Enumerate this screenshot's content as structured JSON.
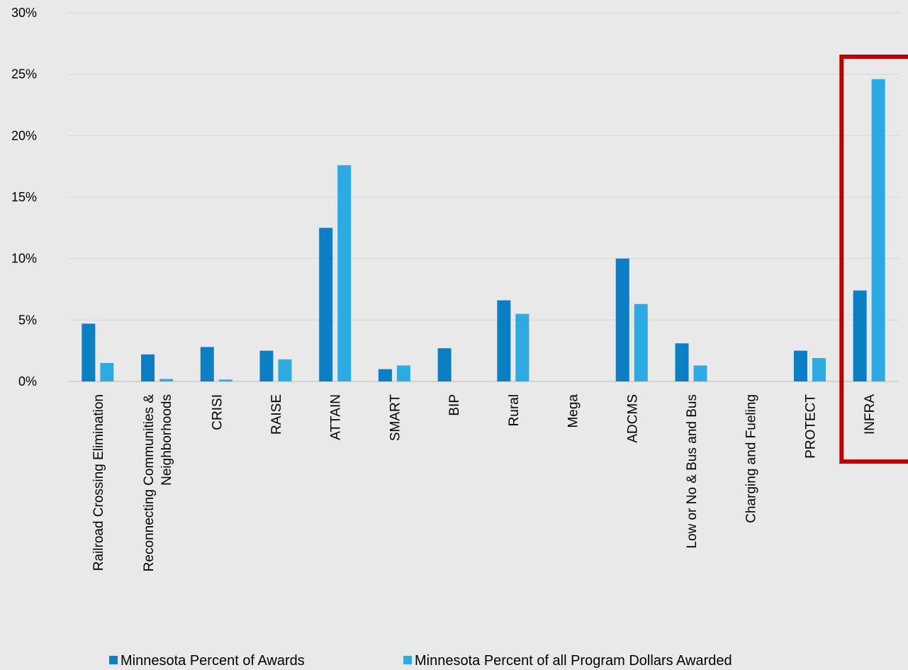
{
  "chart_data": {
    "type": "bar",
    "categories": [
      [
        "Railroad Crossing Elimination"
      ],
      [
        "Reconnecting Communities &",
        "Neighborhoods"
      ],
      [
        "CRISI"
      ],
      [
        "RAISE"
      ],
      [
        "ATTAIN"
      ],
      [
        "SMART"
      ],
      [
        "BIP"
      ],
      [
        "Rural"
      ],
      [
        "Mega"
      ],
      [
        "ADCMS"
      ],
      [
        "Low or No & Bus and Bus"
      ],
      [
        "Charging and Fueling"
      ],
      [
        "PROTECT"
      ],
      [
        "INFRA"
      ]
    ],
    "series": [
      {
        "name": "Minnesota Percent of Awards",
        "color": "#0c7ec4",
        "values": [
          4.7,
          2.2,
          2.8,
          2.5,
          12.5,
          1.0,
          2.7,
          6.6,
          0,
          10.0,
          3.1,
          0,
          2.5,
          7.4
        ]
      },
      {
        "name": "Minnesota Percent of all Program Dollars Awarded",
        "color": "#2dabe2",
        "values": [
          1.5,
          0.2,
          0.15,
          1.8,
          17.6,
          1.3,
          0,
          5.5,
          0,
          6.3,
          1.3,
          0,
          1.9,
          24.6
        ]
      }
    ],
    "ylim": [
      0,
      30
    ],
    "yticks": [
      "0%",
      "5%",
      "10%",
      "15%",
      "20%",
      "25%",
      "30%"
    ],
    "grid": true,
    "legend_position": "bottom",
    "highlight": {
      "category": "INFRA",
      "color": "#c00000"
    }
  }
}
